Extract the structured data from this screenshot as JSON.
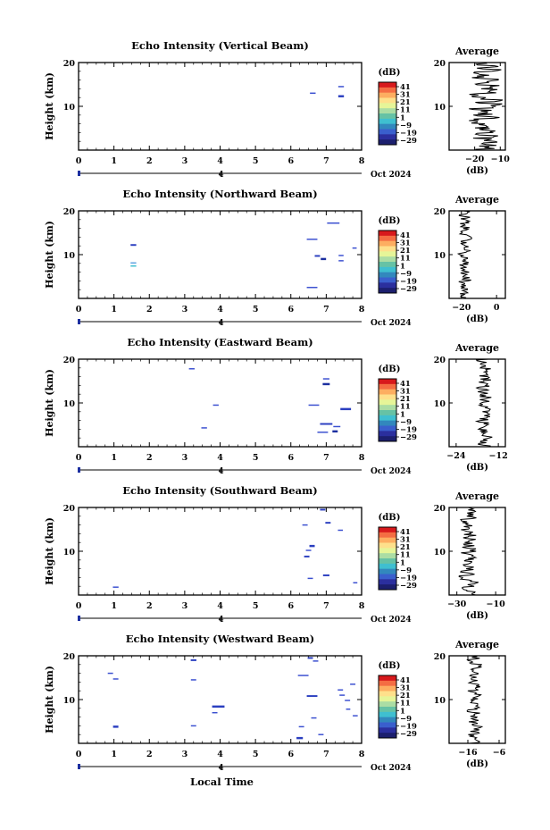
{
  "figure": {
    "xlabel": "Local Time",
    "date_label": "Oct 2024",
    "day_marker": "4",
    "ylabel": "Height (km)",
    "colorbar_unit": "(dB)",
    "colorbar_ticks": [
      "41",
      "31",
      "21",
      "11",
      "1",
      "−9",
      "−19",
      "−29"
    ],
    "colorbar_colors": [
      "#d7191c",
      "#f46d43",
      "#fdae61",
      "#fee08b",
      "#e6f598",
      "#abdda4",
      "#66c2a5",
      "#3fbfd0",
      "#3288bd",
      "#3a5fcd",
      "#2b2f9e",
      "#1c1f6e"
    ],
    "avg_title": "Average",
    "avg_xlabel": "(dB)"
  },
  "chart_data": [
    {
      "type": "heatmap",
      "title": "Echo Intensity (Vertical Beam)",
      "xlabel": "Local Time",
      "ylabel": "Height (km)",
      "xlim": [
        0,
        8
      ],
      "ylim": [
        0,
        20
      ],
      "xticks": [
        "0",
        "1",
        "2",
        "3",
        "4",
        "5",
        "6",
        "7",
        "8"
      ],
      "yticks": [
        "10",
        "20"
      ],
      "echoes": [
        {
          "t": 6.62,
          "h": 13.0,
          "w": 0.16,
          "th": 0.3,
          "c": "#3a4fd0"
        },
        {
          "t": 7.42,
          "h": 14.5,
          "w": 0.16,
          "th": 0.3,
          "c": "#3a4fd0"
        },
        {
          "t": 7.42,
          "h": 12.3,
          "w": 0.16,
          "th": 0.5,
          "c": "#2b3fc0"
        }
      ],
      "avg": {
        "xlim": [
          -30,
          -8
        ],
        "xticks": [
          "−20",
          "−10"
        ],
        "base": -16,
        "spread": 7,
        "seed": 3
      }
    },
    {
      "type": "heatmap",
      "title": "Echo Intensity (Northward Beam)",
      "xlabel": "Local Time",
      "ylabel": "Height (km)",
      "xlim": [
        0,
        8
      ],
      "ylim": [
        0,
        20
      ],
      "xticks": [
        "0",
        "1",
        "2",
        "3",
        "4",
        "5",
        "6",
        "7",
        "8"
      ],
      "yticks": [
        "10",
        "20"
      ],
      "echoes": [
        {
          "t": 1.55,
          "h": 12.2,
          "w": 0.16,
          "th": 0.4,
          "c": "#2b3fc0"
        },
        {
          "t": 1.55,
          "h": 8.1,
          "w": 0.16,
          "th": 0.3,
          "c": "#5aa0e0"
        },
        {
          "t": 1.55,
          "h": 7.4,
          "w": 0.16,
          "th": 0.3,
          "c": "#3fbfd0"
        },
        {
          "t": 6.6,
          "h": 13.5,
          "w": 0.3,
          "th": 0.3,
          "c": "#3a4fd0"
        },
        {
          "t": 7.2,
          "h": 17.2,
          "w": 0.35,
          "th": 0.3,
          "c": "#3a4fd0"
        },
        {
          "t": 7.8,
          "h": 11.5,
          "w": 0.12,
          "th": 0.3,
          "c": "#3a4fd0"
        },
        {
          "t": 6.75,
          "h": 9.7,
          "w": 0.15,
          "th": 0.4,
          "c": "#2b3fc0"
        },
        {
          "t": 6.92,
          "h": 9.0,
          "w": 0.15,
          "th": 0.5,
          "c": "#1c2fa0"
        },
        {
          "t": 7.42,
          "h": 9.8,
          "w": 0.14,
          "th": 0.3,
          "c": "#3a4fd0"
        },
        {
          "t": 7.42,
          "h": 8.6,
          "w": 0.14,
          "th": 0.3,
          "c": "#3a4fd0"
        },
        {
          "t": 6.6,
          "h": 2.5,
          "w": 0.3,
          "th": 0.3,
          "c": "#3a4fd0"
        }
      ],
      "avg": {
        "xlim": [
          -27,
          5
        ],
        "xticks": [
          "−20",
          "0"
        ],
        "base": -18,
        "spread": 4,
        "seed": 7
      }
    },
    {
      "type": "heatmap",
      "title": "Echo Intensity (Eastward Beam)",
      "xlabel": "Local Time",
      "ylabel": "Height (km)",
      "xlim": [
        0,
        8
      ],
      "ylim": [
        0,
        20
      ],
      "xticks": [
        "0",
        "1",
        "2",
        "3",
        "4",
        "5",
        "6",
        "7",
        "8"
      ],
      "yticks": [
        "10",
        "20"
      ],
      "echoes": [
        {
          "t": 3.2,
          "h": 17.8,
          "w": 0.16,
          "th": 0.3,
          "c": "#3a4fd0"
        },
        {
          "t": 3.88,
          "h": 9.5,
          "w": 0.16,
          "th": 0.3,
          "c": "#3a4fd0"
        },
        {
          "t": 3.55,
          "h": 4.3,
          "w": 0.16,
          "th": 0.3,
          "c": "#3a4fd0"
        },
        {
          "t": 7.0,
          "h": 15.5,
          "w": 0.18,
          "th": 0.3,
          "c": "#3a4fd0"
        },
        {
          "t": 7.0,
          "h": 14.3,
          "w": 0.2,
          "th": 0.5,
          "c": "#1c2fa0"
        },
        {
          "t": 6.65,
          "h": 9.5,
          "w": 0.3,
          "th": 0.3,
          "c": "#3a4fd0"
        },
        {
          "t": 7.55,
          "h": 8.6,
          "w": 0.3,
          "th": 0.5,
          "c": "#2b3fc0"
        },
        {
          "t": 7.0,
          "h": 5.2,
          "w": 0.35,
          "th": 0.4,
          "c": "#2b3fc0"
        },
        {
          "t": 7.3,
          "h": 4.6,
          "w": 0.2,
          "th": 0.3,
          "c": "#3a4fd0"
        },
        {
          "t": 6.9,
          "h": 3.3,
          "w": 0.3,
          "th": 0.3,
          "c": "#3a4fd0"
        },
        {
          "t": 7.25,
          "h": 3.5,
          "w": 0.15,
          "th": 0.5,
          "c": "#1c2fa0"
        }
      ],
      "avg": {
        "xlim": [
          -26,
          -10
        ],
        "xticks": [
          "−24",
          "−12"
        ],
        "base": -16,
        "spread": 2.5,
        "seed": 11
      }
    },
    {
      "type": "heatmap",
      "title": "Echo Intensity (Southward Beam)",
      "xlabel": "Local Time",
      "ylabel": "Height (km)",
      "xlim": [
        0,
        8
      ],
      "ylim": [
        0,
        20
      ],
      "xticks": [
        "0",
        "1",
        "2",
        "3",
        "4",
        "5",
        "6",
        "7",
        "8"
      ],
      "yticks": [
        "10",
        "20"
      ],
      "echoes": [
        {
          "t": 6.9,
          "h": 19.5,
          "w": 0.15,
          "th": 0.4,
          "c": "#2b3fc0"
        },
        {
          "t": 6.4,
          "h": 16.0,
          "w": 0.15,
          "th": 0.3,
          "c": "#3a4fd0"
        },
        {
          "t": 7.05,
          "h": 16.5,
          "w": 0.15,
          "th": 0.4,
          "c": "#2b3fc0"
        },
        {
          "t": 7.4,
          "h": 14.8,
          "w": 0.14,
          "th": 0.3,
          "c": "#3a4fd0"
        },
        {
          "t": 6.6,
          "h": 11.2,
          "w": 0.15,
          "th": 0.5,
          "c": "#2b3fc0"
        },
        {
          "t": 6.5,
          "h": 10.2,
          "w": 0.15,
          "th": 0.3,
          "c": "#3a4fd0"
        },
        {
          "t": 6.45,
          "h": 8.8,
          "w": 0.15,
          "th": 0.4,
          "c": "#2b3fc0"
        },
        {
          "t": 6.55,
          "h": 3.8,
          "w": 0.15,
          "th": 0.3,
          "c": "#3a4fd0"
        },
        {
          "t": 7.0,
          "h": 4.5,
          "w": 0.18,
          "th": 0.4,
          "c": "#2b3fc0"
        },
        {
          "t": 7.82,
          "h": 2.8,
          "w": 0.12,
          "th": 0.3,
          "c": "#3a4fd0"
        },
        {
          "t": 1.05,
          "h": 1.8,
          "w": 0.16,
          "th": 0.3,
          "c": "#3a4fd0"
        }
      ],
      "avg": {
        "xlim": [
          -34,
          -5
        ],
        "xticks": [
          "−30",
          "−10"
        ],
        "base": -24,
        "spread": 5,
        "seed": 19
      }
    },
    {
      "type": "heatmap",
      "title": "Echo Intensity (Westward Beam)",
      "xlabel": "Local Time",
      "ylabel": "Height (km)",
      "xlim": [
        0,
        8
      ],
      "ylim": [
        0,
        20
      ],
      "xticks": [
        "0",
        "1",
        "2",
        "3",
        "4",
        "5",
        "6",
        "7",
        "8"
      ],
      "yticks": [
        "10",
        "20"
      ],
      "echoes": [
        {
          "t": 0.9,
          "h": 16.0,
          "w": 0.15,
          "th": 0.3,
          "c": "#3a4fd0"
        },
        {
          "t": 1.05,
          "h": 14.7,
          "w": 0.15,
          "th": 0.3,
          "c": "#3a4fd0"
        },
        {
          "t": 3.25,
          "h": 19.0,
          "w": 0.16,
          "th": 0.4,
          "c": "#2b3fc0"
        },
        {
          "t": 3.25,
          "h": 14.5,
          "w": 0.15,
          "th": 0.3,
          "c": "#3a4fd0"
        },
        {
          "t": 3.95,
          "h": 8.4,
          "w": 0.35,
          "th": 0.5,
          "c": "#2b3fc0"
        },
        {
          "t": 3.85,
          "h": 7.0,
          "w": 0.15,
          "th": 0.3,
          "c": "#3a4fd0"
        },
        {
          "t": 1.05,
          "h": 3.8,
          "w": 0.15,
          "th": 0.5,
          "c": "#2b3fc0"
        },
        {
          "t": 3.25,
          "h": 4.0,
          "w": 0.15,
          "th": 0.3,
          "c": "#3a4fd0"
        },
        {
          "t": 6.35,
          "h": 15.5,
          "w": 0.3,
          "th": 0.3,
          "c": "#3a4fd0"
        },
        {
          "t": 6.55,
          "h": 19.5,
          "w": 0.15,
          "th": 0.4,
          "c": "#2b3fc0"
        },
        {
          "t": 6.7,
          "h": 18.8,
          "w": 0.15,
          "th": 0.3,
          "c": "#3a4fd0"
        },
        {
          "t": 6.6,
          "h": 10.8,
          "w": 0.3,
          "th": 0.4,
          "c": "#2b3fc0"
        },
        {
          "t": 6.65,
          "h": 5.8,
          "w": 0.15,
          "th": 0.3,
          "c": "#3a4fd0"
        },
        {
          "t": 6.3,
          "h": 3.8,
          "w": 0.15,
          "th": 0.3,
          "c": "#3a4fd0"
        },
        {
          "t": 6.25,
          "h": 1.2,
          "w": 0.18,
          "th": 0.5,
          "c": "#2b3fc0"
        },
        {
          "t": 6.85,
          "h": 2.0,
          "w": 0.15,
          "th": 0.3,
          "c": "#3a4fd0"
        },
        {
          "t": 7.4,
          "h": 12.2,
          "w": 0.15,
          "th": 0.3,
          "c": "#3a4fd0"
        },
        {
          "t": 7.45,
          "h": 11.0,
          "w": 0.15,
          "th": 0.3,
          "c": "#3a4fd0"
        },
        {
          "t": 7.6,
          "h": 9.8,
          "w": 0.15,
          "th": 0.3,
          "c": "#3a4fd0"
        },
        {
          "t": 7.75,
          "h": 13.5,
          "w": 0.15,
          "th": 0.3,
          "c": "#3a4fd0"
        },
        {
          "t": 7.62,
          "h": 7.8,
          "w": 0.12,
          "th": 0.3,
          "c": "#3a4fd0"
        },
        {
          "t": 7.82,
          "h": 6.3,
          "w": 0.14,
          "th": 0.3,
          "c": "#3a4fd0"
        }
      ],
      "avg": {
        "xlim": [
          -22,
          -4
        ],
        "xticks": [
          "−16",
          "−6"
        ],
        "base": -14,
        "spread": 2.5,
        "seed": 23
      }
    }
  ]
}
